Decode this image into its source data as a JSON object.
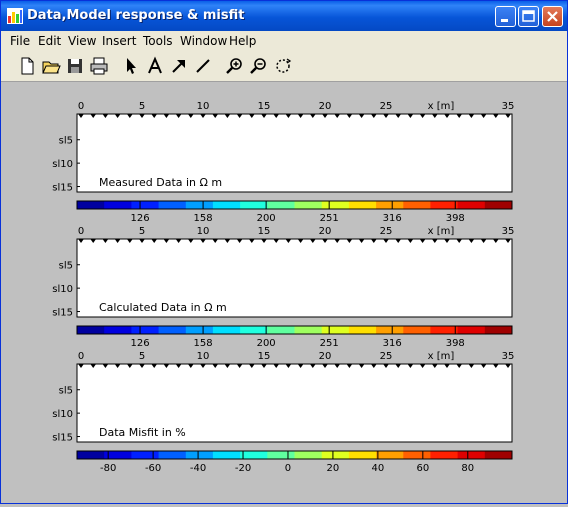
{
  "window": {
    "title": "Data,Model response & misfit",
    "minimize_icon": "minimize-icon",
    "maximize_icon": "maximize-icon",
    "close_icon": "close-icon"
  },
  "menu": [
    "File",
    "Edit",
    "View",
    "Insert",
    "Tools",
    "Window",
    "Help"
  ],
  "toolbar": [
    "new-file-icon",
    "open-folder-icon",
    "save-icon",
    "print-icon",
    "arrow-pointer-icon",
    "text-insert-icon",
    "arrow-insert-icon",
    "line-insert-icon",
    "zoom-in-icon",
    "zoom-out-icon",
    "rotate-icon"
  ],
  "chart_data": [
    {
      "type": "heatmap",
      "title": "Measured Data in Ω m",
      "xlabel": "x [m]",
      "xticks": [
        "0",
        "5",
        "10",
        "15",
        "20",
        "25",
        "35"
      ],
      "yticks": [
        "sl5",
        "sl10",
        "sl15"
      ],
      "xlim": [
        0,
        35
      ],
      "colorbar": {
        "ticks": [
          "126",
          "158",
          "200",
          "251",
          "316",
          "398"
        ],
        "scale": "log",
        "colormap": "jet"
      },
      "levels": 16
    },
    {
      "type": "heatmap",
      "title": "Calculated Data in Ω m",
      "xlabel": "x [m]",
      "xticks": [
        "0",
        "5",
        "10",
        "15",
        "20",
        "25",
        "35"
      ],
      "yticks": [
        "sl5",
        "sl10",
        "sl15"
      ],
      "xlim": [
        0,
        35
      ],
      "colorbar": {
        "ticks": [
          "126",
          "158",
          "200",
          "251",
          "316",
          "398"
        ],
        "scale": "log",
        "colormap": "jet"
      },
      "levels": 16
    },
    {
      "type": "heatmap",
      "title": "Data Misfit in %",
      "xlabel": "x [m]",
      "xticks": [
        "0",
        "5",
        "10",
        "15",
        "20",
        "25",
        "35"
      ],
      "yticks": [
        "sl5",
        "sl10",
        "sl15"
      ],
      "xlim": [
        0,
        35
      ],
      "colorbar": {
        "ticks": [
          "-80",
          "-60",
          "-40",
          "-20",
          "0",
          "20",
          "40",
          "60",
          "80"
        ],
        "scale": "linear",
        "colormap": "jet"
      },
      "levels": 16
    }
  ]
}
